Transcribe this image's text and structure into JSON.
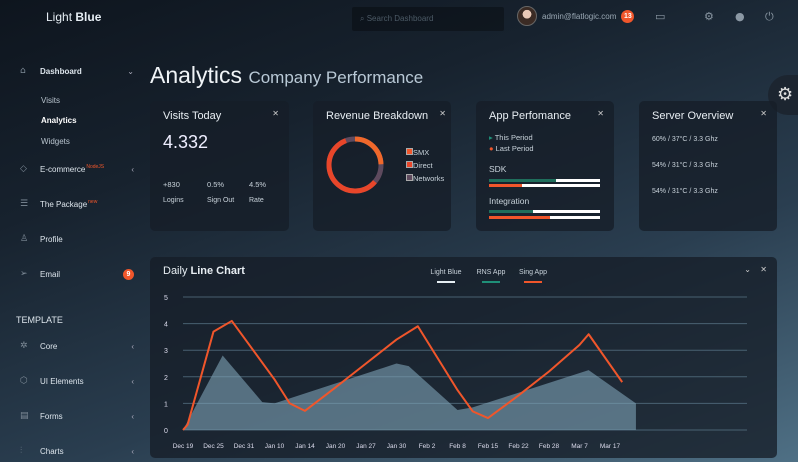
{
  "brand": {
    "light": "Light",
    "bold": "Blue"
  },
  "header": {
    "search_placeholder": "Search Dashboard",
    "user_email": "admin@flatlogic.com",
    "notifications": "13"
  },
  "sidebar": {
    "dashboard": "Dashboard",
    "subitems": [
      "Visits",
      "Analytics",
      "Widgets"
    ],
    "ecommerce": "E-commerce",
    "ecommerce_tag": "NodeJS",
    "package": "The Package",
    "package_tag": "new",
    "profile": "Profile",
    "email": "Email",
    "email_badge": "9",
    "section": "TEMPLATE",
    "template_items": [
      "Core",
      "UI Elements",
      "Forms",
      "Charts"
    ]
  },
  "page": {
    "title": "Analytics",
    "subtitle": "Company Performance"
  },
  "visits": {
    "title": "Visits Today",
    "value": "4.332",
    "stats": [
      {
        "value": "+830",
        "label": "Logins"
      },
      {
        "value": "0.5%",
        "label": "Sign Out"
      },
      {
        "value": "4.5%",
        "label": "Rate"
      }
    ]
  },
  "revenue": {
    "title": "Revenue Breakdown",
    "legend": [
      "SMX",
      "Direct",
      "Networks"
    ],
    "colors": [
      "#f0562b",
      "#e8462a",
      "#5e4a5e"
    ]
  },
  "app": {
    "title": "App Perfomance",
    "this_period": "This Period",
    "last_period": "Last Period",
    "rows": [
      {
        "label": "SDK",
        "this": 0.6,
        "last": 0.3
      },
      {
        "label": "Integration",
        "this": 0.4,
        "last": 0.55
      }
    ]
  },
  "server": {
    "title": "Server Overview",
    "rows": [
      "60% / 37°C / 3.3 Ghz",
      "54% / 31°C / 3.3 Ghz",
      "54% / 31°C / 3.3 Ghz"
    ]
  },
  "chart_data": {
    "type": "line",
    "title_light": "Daily",
    "title_bold": "Line Chart",
    "categories": [
      "Dec 19",
      "Dec 25",
      "Dec 31",
      "Jan 10",
      "Jan 14",
      "Jan 20",
      "Jan 27",
      "Jan 30",
      "Feb 2",
      "Feb 8",
      "Feb 15",
      "Feb 22",
      "Feb 28",
      "Mar 7",
      "Mar 17"
    ],
    "ylim": [
      0,
      5
    ],
    "yticks": [
      "0",
      "1",
      "2",
      "3",
      "4",
      "5"
    ],
    "grid": true,
    "legend_position": "top-center",
    "series": [
      {
        "name": "Light Blue",
        "style": "area",
        "color": "#7fa3b8",
        "points": [
          [
            0,
            0
          ],
          [
            1.3,
            2.8
          ],
          [
            2.6,
            1.05
          ],
          [
            3,
            1.0
          ],
          [
            7,
            2.5
          ],
          [
            7.4,
            2.4
          ],
          [
            9,
            0.75
          ],
          [
            9.5,
            0.85
          ],
          [
            13.3,
            2.25
          ],
          [
            14.85,
            1.0
          ]
        ]
      },
      {
        "name": "RNS App",
        "color": "#1f8f78",
        "points": []
      },
      {
        "name": "Sing App",
        "style": "line",
        "color": "#f0562b",
        "points": [
          [
            0,
            0
          ],
          [
            0.15,
            0.2
          ],
          [
            1,
            3.7
          ],
          [
            1.6,
            4.1
          ],
          [
            3,
            1.9
          ],
          [
            3.5,
            1.0
          ],
          [
            4,
            0.72
          ],
          [
            5,
            1.6
          ],
          [
            6,
            2.5
          ],
          [
            7,
            3.4
          ],
          [
            7.7,
            3.9
          ],
          [
            9,
            1.5
          ],
          [
            9.5,
            0.7
          ],
          [
            10,
            0.45
          ],
          [
            11,
            1.3
          ],
          [
            12,
            2.2
          ],
          [
            13,
            3.2
          ],
          [
            13.3,
            3.6
          ],
          [
            14.4,
            1.8
          ]
        ]
      }
    ]
  }
}
